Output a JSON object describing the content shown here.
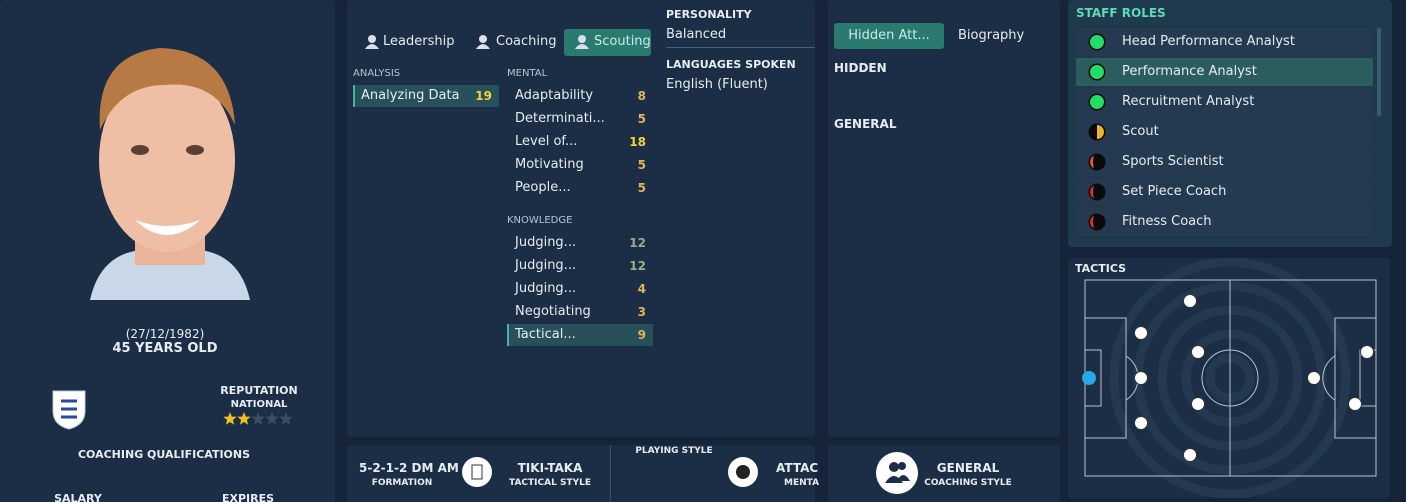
{
  "profile": {
    "date_of_birth": "(27/12/1982)",
    "age": "45 YEARS OLD",
    "reputation_label": "REPUTATION",
    "reputation_level": "NATIONAL",
    "reputation_stars": 2,
    "reputation_stars_max": 5,
    "coaching_qualifications": "COACHING QUALIFICATIONS",
    "salary_label": "SALARY",
    "expires_label": "EXPIRES"
  },
  "attribute_tabs": [
    "Leadership",
    "Coaching",
    "Scouting"
  ],
  "active_tab": 2,
  "attributes": [
    {
      "heading": "ANALYSIS",
      "items": [
        {
          "name": "Analyzing Data",
          "value": 19,
          "highlighted": true
        }
      ]
    },
    {
      "heading": "MENTAL",
      "items": [
        {
          "name": "Adaptability",
          "value": 8
        },
        {
          "name": "Determinati...",
          "value": 5
        },
        {
          "name": "Level of...",
          "value": 18
        },
        {
          "name": "Motivating",
          "value": 5
        },
        {
          "name": "People...",
          "value": 5
        }
      ]
    },
    {
      "heading": "KNOWLEDGE",
      "items": [
        {
          "name": "Judging...",
          "value": 12
        },
        {
          "name": "Judging...",
          "value": 12
        },
        {
          "name": "Judging...",
          "value": 4
        },
        {
          "name": "Negotiating",
          "value": 3
        },
        {
          "name": "Tactical...",
          "value": 9,
          "highlighted": true
        }
      ]
    }
  ],
  "personality": {
    "label": "PERSONALITY",
    "value": "Balanced"
  },
  "languages": {
    "label": "LANGUAGES SPOKEN",
    "value": "English (Fluent)"
  },
  "info_tabs": [
    "Hidden Att...",
    "Biography"
  ],
  "info_sections": [
    "HIDDEN",
    "GENERAL"
  ],
  "staff_roles": {
    "title": "STAFF ROLES",
    "roles": [
      {
        "name": "Head Performance Analyst",
        "color": "#22dd66",
        "fill": "full"
      },
      {
        "name": "Performance Analyst",
        "color": "#22dd66",
        "fill": "full",
        "selected": true
      },
      {
        "name": "Recruitment Analyst",
        "color": "#22dd66",
        "fill": "full"
      },
      {
        "name": "Scout",
        "color": "#f0b429",
        "fill": "half"
      },
      {
        "name": "Sports Scientist",
        "color": "#e8553a",
        "fill": "low"
      },
      {
        "name": "Set Piece Coach",
        "color": "#d8322a",
        "fill": "low"
      },
      {
        "name": "Fitness Coach",
        "color": "#d8322a",
        "fill": "low"
      }
    ]
  },
  "tactics": {
    "title": "TACTICS"
  },
  "tactic_summary": [
    {
      "value": "5-2-1-2 DM AM",
      "label": "FORMATION"
    },
    {
      "value": "TIKI-TAKA",
      "label": "TACTICAL STYLE"
    }
  ],
  "playing_style": {
    "label": "PLAYING STYLE",
    "value": "ATTAC",
    "sub": "MENTA"
  },
  "coaching_style": {
    "value": "GENERAL",
    "label": "COACHING STYLE"
  }
}
